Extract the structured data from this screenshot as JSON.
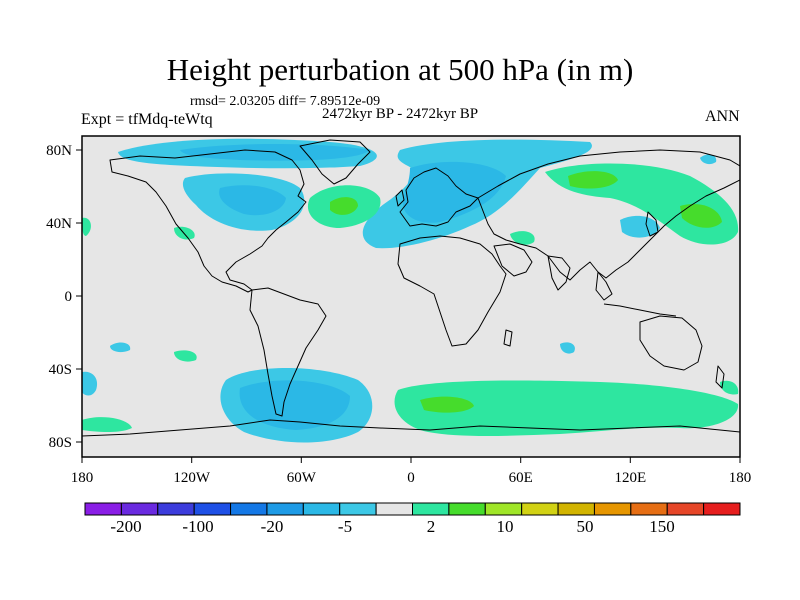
{
  "header": {
    "title": "Height perturbation at 500 hPa (in m)",
    "stats": "rmsd= 2.03205 diff= 7.89512e-09",
    "period": "2472kyr BP - 2472kyr BP",
    "experiment": "Expt = tfMdq-teWtq",
    "season": "ANN"
  },
  "axes": {
    "lat_labels": [
      "80N",
      "40N",
      "0",
      "40S",
      "80S"
    ],
    "lon_labels": [
      "180",
      "120W",
      "60W",
      "0",
      "60E",
      "120E",
      "180"
    ]
  },
  "colorbar": {
    "colors": [
      "#8a1ee6",
      "#6a2ae0",
      "#3c3cdc",
      "#1e50e6",
      "#1478e6",
      "#1e9be6",
      "#2bb8e6",
      "#3cc8e6",
      "#e6e6e6",
      "#2ee6a0",
      "#46dc2c",
      "#a0e628",
      "#d2d214",
      "#d2b400",
      "#e69600",
      "#e66e14",
      "#e64628",
      "#e61e1e"
    ],
    "tick_labels": [
      "-200",
      "-100",
      "-20",
      "-5",
      "2",
      "10",
      "50",
      "150"
    ]
  },
  "map": {
    "projection": "cylindrical-equidistant",
    "background_color": "#e6e6e6",
    "coastline_color": "#000000"
  }
}
